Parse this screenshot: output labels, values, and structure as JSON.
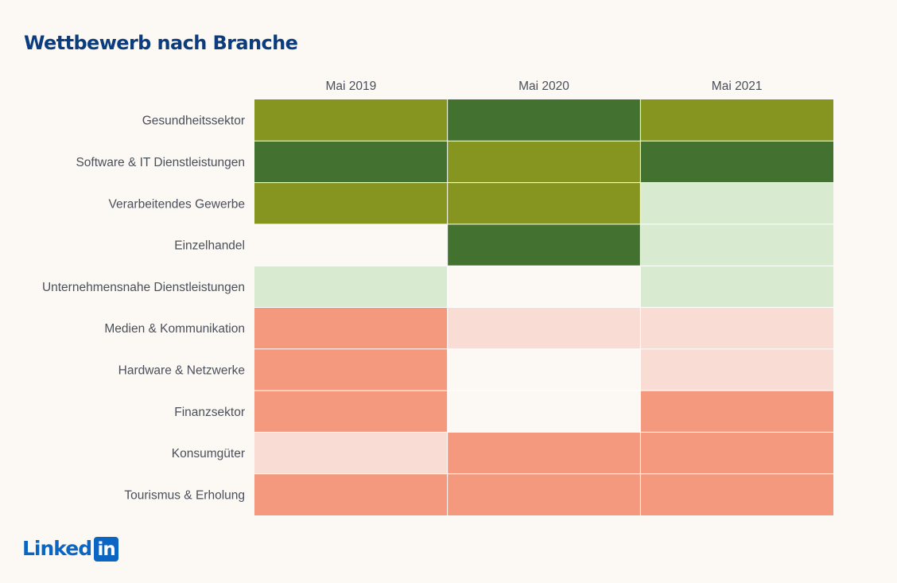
{
  "title": "Wettbewerb nach Branche",
  "logo": {
    "word": "Linked",
    "box": "in"
  },
  "chart_data": {
    "type": "heatmap",
    "title": "Wettbewerb nach Branche",
    "columns": [
      "Mai 2019",
      "Mai 2020",
      "Mai 2021"
    ],
    "rows": [
      "Gesundheitssektor",
      "Software & IT Dienstleistungen",
      "Verarbeitendes Gewerbe",
      "Einzelhandel",
      "Unternehmensnahe Dienstleistungen",
      "Medien & Kommunikation",
      "Hardware & Netzwerke",
      "Finanzsektor",
      "Konsumgüter",
      "Tourismus & Erholung"
    ],
    "levels": [
      [
        "olive",
        "dark_green",
        "olive"
      ],
      [
        "dark_green",
        "olive",
        "dark_green"
      ],
      [
        "olive",
        "olive",
        "light_green"
      ],
      [
        "neutral",
        "dark_green",
        "light_green"
      ],
      [
        "light_green",
        "neutral",
        "light_green"
      ],
      [
        "salmon",
        "light_pink",
        "light_pink"
      ],
      [
        "salmon",
        "neutral",
        "light_pink"
      ],
      [
        "salmon",
        "neutral",
        "salmon"
      ],
      [
        "light_pink",
        "salmon",
        "salmon"
      ],
      [
        "salmon",
        "salmon",
        "salmon"
      ]
    ],
    "palette": {
      "dark_green": "#43712f",
      "olive": "#86951f",
      "light_green": "#d8ead0",
      "neutral": "#fcf9f4",
      "light_pink": "#f9ddd5",
      "salmon": "#f5997e"
    },
    "grid_line_color": "#ffffff"
  }
}
